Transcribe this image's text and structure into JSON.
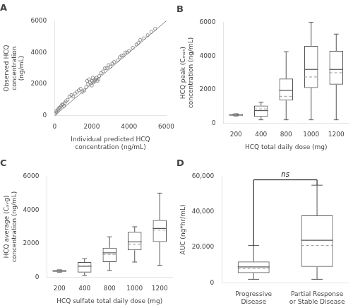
{
  "chart_data": [
    {
      "type": "scatter",
      "title": "A",
      "xlabel": "Individual predicted HCQ\nconcentration (ng/mL)",
      "ylabel": "Observed HCQ\nconcentration\n(ng/mL)",
      "series": [
        {
          "type": "scatter",
          "color": "#777777",
          "x": [
            30,
            80,
            100,
            150,
            200,
            250,
            300,
            350,
            400,
            450,
            500,
            550,
            600,
            700,
            800,
            900,
            1000,
            1100,
            1200,
            1300,
            1400,
            1500,
            1600,
            1700,
            1750,
            1800,
            1850,
            1900,
            2000,
            2000,
            2050,
            2100,
            2150,
            2200,
            2250,
            2300,
            2350,
            2400,
            2500,
            2600,
            2700,
            2800,
            2900,
            3000,
            3100,
            3200,
            3400,
            3500,
            3600,
            3700,
            3800,
            3900,
            4000,
            4200,
            4400,
            4500,
            4600,
            4800,
            5000,
            5200,
            5400
          ],
          "values": [
            100,
            300,
            200,
            300,
            400,
            500,
            500,
            600,
            700,
            700,
            600,
            800,
            900,
            1000,
            1200,
            1300,
            1200,
            1400,
            1500,
            1600,
            1700,
            1500,
            1600,
            1800,
            2200,
            2000,
            2300,
            2100,
            1900,
            2200,
            2400,
            2100,
            2200,
            2300,
            2400,
            2200,
            2300,
            2500,
            2700,
            2800,
            3000,
            3000,
            3200,
            3100,
            3300,
            3400,
            3500,
            3700,
            3800,
            3800,
            4000,
            4000,
            4100,
            4300,
            4500,
            4600,
            4800,
            4900,
            5100,
            5300,
            5500
          ]
        },
        {
          "type": "line",
          "color": "#888888",
          "x": [
            0,
            6000
          ],
          "values": [
            0,
            6000
          ]
        }
      ],
      "xlim": [
        0,
        6000
      ],
      "ylim": [
        0,
        6000
      ],
      "xticks": [
        0,
        2000,
        4000,
        6000
      ],
      "yticks": [
        0,
        2000,
        4000,
        6000
      ],
      "grid": false
    },
    {
      "type": "box",
      "title": "B",
      "xlabel": "HCQ total daily dose (mg)",
      "ylabel": "HCQ peak (Cₘₐₓ)\nconcentration (ng/mL)",
      "categories": [
        "200",
        "400",
        "800",
        "1000",
        "1200"
      ],
      "whislo": [
        430,
        200,
        200,
        200,
        200
      ],
      "q1": [
        450,
        380,
        1350,
        2100,
        2300
      ],
      "median": [
        500,
        750,
        1950,
        3200,
        3200
      ],
      "mean": [
        500,
        850,
        1600,
        2750,
        3000
      ],
      "q3": [
        540,
        1050,
        2650,
        4600,
        4300
      ],
      "whishi": [
        560,
        1250,
        4250,
        6000,
        5300
      ],
      "color": "#555555",
      "ylim": [
        0,
        6000
      ],
      "yticks": [
        0,
        2000,
        4000,
        6000
      ],
      "grid": false
    },
    {
      "type": "box",
      "title": "C",
      "xlabel": "HCQ sulfate total daily dose (mg)",
      "ylabel": "HCQ average (Cₐᵥɡ)\nconcentration (ng/mL)",
      "categories": [
        "200",
        "400",
        "800",
        "1000",
        "1200"
      ],
      "whislo": [
        300,
        100,
        400,
        900,
        700
      ],
      "q1": [
        320,
        280,
        900,
        1600,
        2100
      ],
      "median": [
        380,
        650,
        1450,
        2100,
        2900
      ],
      "mean": [
        380,
        680,
        1350,
        1950,
        2800
      ],
      "q3": [
        420,
        900,
        1750,
        2700,
        3400
      ],
      "whishi": [
        440,
        1100,
        2400,
        3000,
        5000
      ],
      "color": "#555555",
      "ylim": [
        0,
        6000
      ],
      "yticks": [
        0,
        2000,
        4000,
        6000
      ],
      "grid": false
    },
    {
      "type": "box",
      "title": "D",
      "ylabel": "AUC (ng*hr/mL)",
      "categories": [
        "Progressive\nDisease",
        "Partial Response\nor Stable Disease"
      ],
      "whislo": [
        2000,
        2000
      ],
      "q1": [
        5500,
        9000
      ],
      "median": [
        9000,
        24000
      ],
      "mean": [
        8000,
        21000
      ],
      "q3": [
        12000,
        38000
      ],
      "whishi": [
        21000,
        55000
      ],
      "color": "#555555",
      "ylim": [
        0,
        60000
      ],
      "yticks": [
        0,
        {
          "value": 20000,
          "label": "20,000"
        },
        {
          "value": 40000,
          "label": "40,000"
        },
        {
          "value": 60000,
          "label": "60,000"
        }
      ],
      "annotations": [
        {
          "text": "ns",
          "y": 58000
        }
      ],
      "grid": false
    }
  ]
}
